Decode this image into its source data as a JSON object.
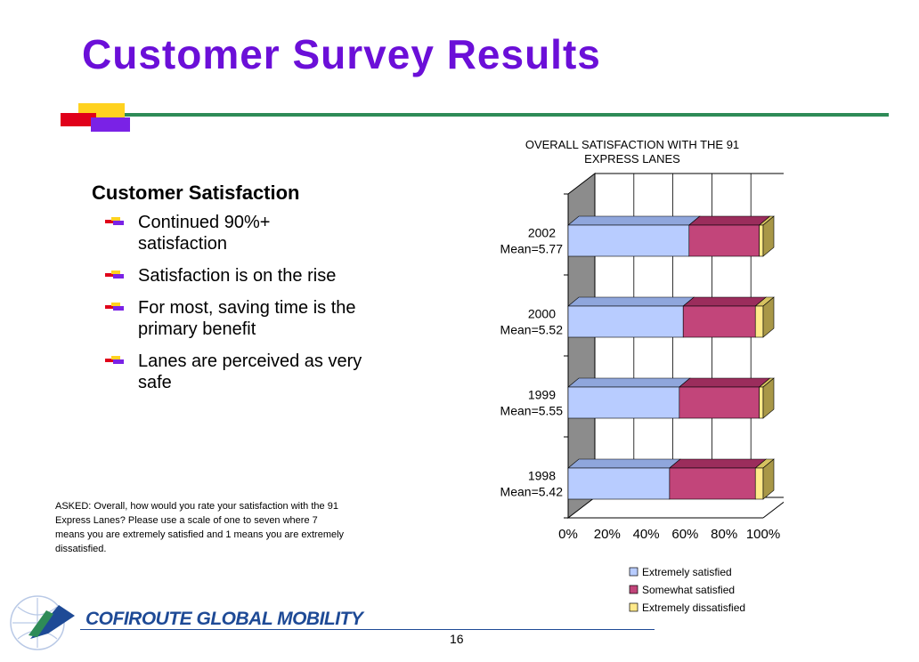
{
  "title": "Customer Survey Results",
  "subtitle": "Customer Satisfaction",
  "bullets": [
    "Continued 90%+ satisfaction",
    "Satisfaction is on the rise",
    "For most, saving time is the primary benefit",
    "Lanes are perceived as very safe"
  ],
  "asked_note": "ASKED:  Overall, how would you rate your satisfaction with the 91 Express Lanes?  Please use a scale of one to seven where 7 means you are extremely satisfied and 1 means you are extremely dissatisfied.",
  "logo_text": "COFIROUTE GLOBAL MOBILITY",
  "page_number": "16",
  "colors": {
    "title": "#6b0fd8",
    "accent_line": "#2e8b57",
    "extremely_satisfied": "#b8ccff",
    "somewhat_satisfied": "#c2457a",
    "extremely_dissatisfied": "#ffe98a",
    "logo_blue": "#1e4a96"
  },
  "chart_data": {
    "type": "bar",
    "orientation": "horizontal",
    "stacked": true,
    "percent_stacked": true,
    "title_lines": [
      "OVERALL SATISFACTION WITH THE 91",
      "EXPRESS LANES"
    ],
    "categories": [
      [
        "2002",
        "Mean=5.77"
      ],
      [
        "2000",
        "Mean=5.52"
      ],
      [
        "1999",
        "Mean=5.55"
      ],
      [
        "1998",
        "Mean=5.42"
      ]
    ],
    "series": [
      {
        "name": "Extremely satisfied",
        "values": [
          62,
          59,
          57,
          52
        ]
      },
      {
        "name": "Somewhat satisfied",
        "values": [
          36,
          37,
          41,
          44
        ]
      },
      {
        "name": "Extremely dissatisfied",
        "values": [
          2,
          4,
          2,
          4
        ]
      }
    ],
    "xticks": [
      "0%",
      "20%",
      "40%",
      "60%",
      "80%",
      "100%"
    ],
    "xlim": [
      0,
      100
    ],
    "grid": true,
    "legend_position": "bottom"
  }
}
